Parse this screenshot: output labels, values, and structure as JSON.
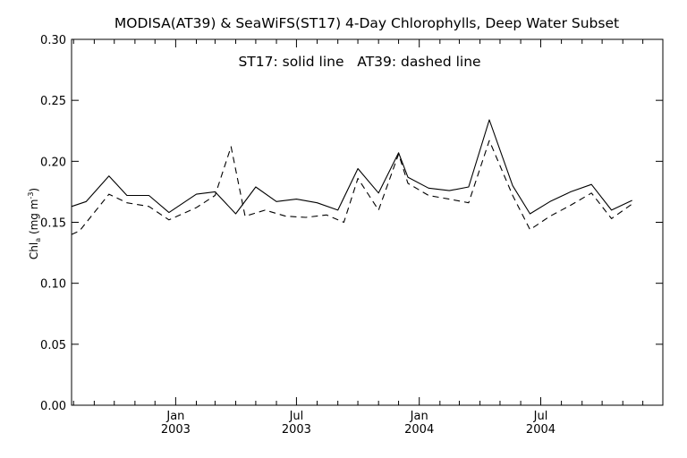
{
  "chart_data": {
    "type": "line",
    "title": "MODISA(AT39) & SeaWiFS(ST17) 4-Day Chlorophylls, Deep Water Subset",
    "annotation": "ST17: solid line   AT39: dashed line",
    "ylabel": {
      "main": "Chl",
      "sub": "a",
      "unit_open": " (mg m",
      "unit_sup": "-3",
      "unit_close": ")"
    },
    "ylim": [
      0.0,
      0.3
    ],
    "yticks": [
      {
        "value": 0.0,
        "label": "0.00"
      },
      {
        "value": 0.05,
        "label": "0.05"
      },
      {
        "value": 0.1,
        "label": "0.10"
      },
      {
        "value": 0.15,
        "label": "0.15"
      },
      {
        "value": 0.2,
        "label": "0.20"
      },
      {
        "value": 0.25,
        "label": "0.25"
      },
      {
        "value": 0.3,
        "label": "0.30"
      }
    ],
    "xlim": [
      "2002-07-29",
      "2004-12-31"
    ],
    "xticks": [
      {
        "date": "2003-01-01",
        "month": "Jan",
        "year": "2003"
      },
      {
        "date": "2003-07-01",
        "month": "Jul",
        "year": "2003"
      },
      {
        "date": "2004-01-01",
        "month": "Jan",
        "year": "2004"
      },
      {
        "date": "2004-07-01",
        "month": "Jul",
        "year": "2004"
      }
    ],
    "grid": false,
    "series": [
      {
        "name": "ST17",
        "style": "solid",
        "color": "#000000",
        "points": [
          [
            "2002-07-29",
            0.163
          ],
          [
            "2002-08-20",
            0.167
          ],
          [
            "2002-09-23",
            0.188
          ],
          [
            "2002-10-20",
            0.172
          ],
          [
            "2002-11-22",
            0.172
          ],
          [
            "2002-12-22",
            0.158
          ],
          [
            "2003-02-01",
            0.173
          ],
          [
            "2003-03-01",
            0.175
          ],
          [
            "2003-04-01",
            0.157
          ],
          [
            "2003-05-01",
            0.179
          ],
          [
            "2003-06-01",
            0.167
          ],
          [
            "2003-07-01",
            0.169
          ],
          [
            "2003-08-01",
            0.166
          ],
          [
            "2003-09-01",
            0.16
          ],
          [
            "2003-10-01",
            0.194
          ],
          [
            "2003-11-01",
            0.174
          ],
          [
            "2003-12-01",
            0.207
          ],
          [
            "2003-12-15",
            0.187
          ],
          [
            "2004-01-15",
            0.178
          ],
          [
            "2004-02-15",
            0.176
          ],
          [
            "2004-03-15",
            0.179
          ],
          [
            "2004-04-15",
            0.234
          ],
          [
            "2004-05-20",
            0.18
          ],
          [
            "2004-06-15",
            0.157
          ],
          [
            "2004-07-15",
            0.167
          ],
          [
            "2004-08-15",
            0.175
          ],
          [
            "2004-09-15",
            0.181
          ],
          [
            "2004-10-15",
            0.16
          ],
          [
            "2004-11-15",
            0.168
          ]
        ]
      },
      {
        "name": "AT39",
        "style": "dashed",
        "color": "#000000",
        "points": [
          [
            "2002-07-29",
            0.14
          ],
          [
            "2002-08-10",
            0.143
          ],
          [
            "2002-09-23",
            0.173
          ],
          [
            "2002-10-20",
            0.166
          ],
          [
            "2002-11-22",
            0.163
          ],
          [
            "2002-12-22",
            0.152
          ],
          [
            "2003-02-01",
            0.162
          ],
          [
            "2003-03-01",
            0.172
          ],
          [
            "2003-03-25",
            0.212
          ],
          [
            "2003-04-15",
            0.155
          ],
          [
            "2003-05-15",
            0.16
          ],
          [
            "2003-06-15",
            0.155
          ],
          [
            "2003-07-15",
            0.154
          ],
          [
            "2003-08-15",
            0.156
          ],
          [
            "2003-09-10",
            0.15
          ],
          [
            "2003-10-01",
            0.186
          ],
          [
            "2003-11-01",
            0.16
          ],
          [
            "2003-12-01",
            0.206
          ],
          [
            "2003-12-15",
            0.182
          ],
          [
            "2004-01-15",
            0.172
          ],
          [
            "2004-02-15",
            0.169
          ],
          [
            "2004-03-15",
            0.166
          ],
          [
            "2004-04-15",
            0.217
          ],
          [
            "2004-05-20",
            0.172
          ],
          [
            "2004-06-15",
            0.144
          ],
          [
            "2004-07-15",
            0.155
          ],
          [
            "2004-08-15",
            0.164
          ],
          [
            "2004-09-15",
            0.174
          ],
          [
            "2004-10-15",
            0.153
          ],
          [
            "2004-11-15",
            0.165
          ]
        ]
      }
    ]
  }
}
